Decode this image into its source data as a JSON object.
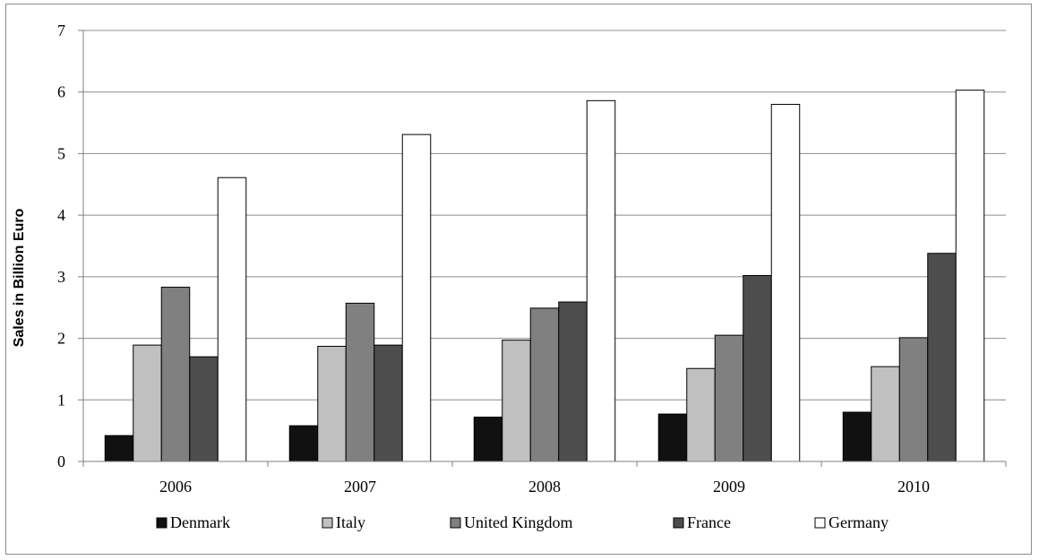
{
  "chart_data": {
    "type": "bar",
    "title": "",
    "xlabel": "",
    "ylabel": "Sales in Billion Euro",
    "categories": [
      "2006",
      "2007",
      "2008",
      "2009",
      "2010"
    ],
    "ylim": [
      0,
      7
    ],
    "yticks": [
      "0",
      "1",
      "2",
      "3",
      "4",
      "5",
      "6",
      "7"
    ],
    "grid": "horizontal",
    "legend_position": "bottom",
    "series": [
      {
        "name": "Denmark",
        "color": "#111111",
        "values": [
          0.42,
          0.58,
          0.72,
          0.77,
          0.8
        ]
      },
      {
        "name": "Italy",
        "color": "#c0c0c0",
        "values": [
          1.89,
          1.87,
          1.97,
          1.51,
          1.54
        ]
      },
      {
        "name": "United Kingdom",
        "color": "#808080",
        "values": [
          2.83,
          2.57,
          2.49,
          2.05,
          2.01
        ]
      },
      {
        "name": "France",
        "color": "#4d4d4d",
        "values": [
          1.7,
          1.89,
          2.59,
          3.02,
          3.38
        ]
      },
      {
        "name": "Germany",
        "color": "#ffffff",
        "values": [
          4.61,
          5.31,
          5.86,
          5.8,
          6.03
        ]
      }
    ]
  }
}
